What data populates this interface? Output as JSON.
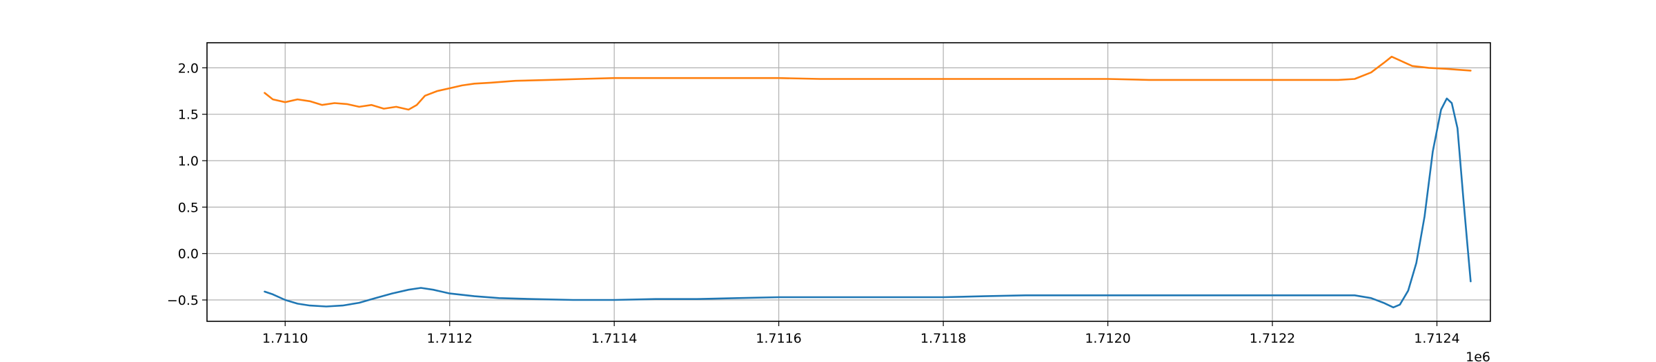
{
  "chart_data": {
    "type": "line",
    "title": "",
    "xlabel": "",
    "ylabel": "",
    "x_offset_label": "1e6",
    "xlim": [
      1710905,
      1712465
    ],
    "ylim": [
      -0.73,
      2.27
    ],
    "grid": true,
    "x_ticks": [
      {
        "value": 1711000,
        "label": "1.7110"
      },
      {
        "value": 1711200,
        "label": "1.7112"
      },
      {
        "value": 1711400,
        "label": "1.7114"
      },
      {
        "value": 1711600,
        "label": "1.7116"
      },
      {
        "value": 1711800,
        "label": "1.7118"
      },
      {
        "value": 1712000,
        "label": "1.7120"
      },
      {
        "value": 1712200,
        "label": "1.7122"
      },
      {
        "value": 1712400,
        "label": "1.7124"
      }
    ],
    "y_ticks": [
      {
        "value": 2.0,
        "label": "2.0"
      },
      {
        "value": 1.5,
        "label": "1.5"
      },
      {
        "value": 1.0,
        "label": "1.0"
      },
      {
        "value": 0.5,
        "label": "0.5"
      },
      {
        "value": 0.0,
        "label": "0.0"
      },
      {
        "value": -0.5,
        "label": "−0.5"
      }
    ],
    "series": [
      {
        "color": "#1f77b4",
        "points": [
          [
            1710975,
            -0.41
          ],
          [
            1710985,
            -0.44
          ],
          [
            1711000,
            -0.5
          ],
          [
            1711015,
            -0.54
          ],
          [
            1711030,
            -0.56
          ],
          [
            1711050,
            -0.57
          ],
          [
            1711070,
            -0.56
          ],
          [
            1711090,
            -0.53
          ],
          [
            1711110,
            -0.48
          ],
          [
            1711130,
            -0.43
          ],
          [
            1711150,
            -0.39
          ],
          [
            1711165,
            -0.37
          ],
          [
            1711180,
            -0.39
          ],
          [
            1711200,
            -0.43
          ],
          [
            1711230,
            -0.46
          ],
          [
            1711260,
            -0.48
          ],
          [
            1711300,
            -0.49
          ],
          [
            1711350,
            -0.5
          ],
          [
            1711400,
            -0.5
          ],
          [
            1711450,
            -0.49
          ],
          [
            1711500,
            -0.49
          ],
          [
            1711550,
            -0.48
          ],
          [
            1711600,
            -0.47
          ],
          [
            1711650,
            -0.47
          ],
          [
            1711700,
            -0.47
          ],
          [
            1711750,
            -0.47
          ],
          [
            1711800,
            -0.47
          ],
          [
            1711850,
            -0.46
          ],
          [
            1711900,
            -0.45
          ],
          [
            1711950,
            -0.45
          ],
          [
            1712000,
            -0.45
          ],
          [
            1712050,
            -0.45
          ],
          [
            1712100,
            -0.45
          ],
          [
            1712150,
            -0.45
          ],
          [
            1712200,
            -0.45
          ],
          [
            1712250,
            -0.45
          ],
          [
            1712300,
            -0.45
          ],
          [
            1712320,
            -0.48
          ],
          [
            1712335,
            -0.53
          ],
          [
            1712347,
            -0.58
          ],
          [
            1712355,
            -0.55
          ],
          [
            1712365,
            -0.4
          ],
          [
            1712375,
            -0.1
          ],
          [
            1712385,
            0.4
          ],
          [
            1712395,
            1.1
          ],
          [
            1712405,
            1.55
          ],
          [
            1712412,
            1.67
          ],
          [
            1712418,
            1.62
          ],
          [
            1712425,
            1.35
          ],
          [
            1712432,
            0.6
          ],
          [
            1712437,
            0.1
          ],
          [
            1712441,
            -0.3
          ]
        ]
      },
      {
        "color": "#ff7f0e",
        "points": [
          [
            1710975,
            1.73
          ],
          [
            1710985,
            1.66
          ],
          [
            1711000,
            1.63
          ],
          [
            1711015,
            1.66
          ],
          [
            1711030,
            1.64
          ],
          [
            1711045,
            1.6
          ],
          [
            1711060,
            1.62
          ],
          [
            1711075,
            1.61
          ],
          [
            1711090,
            1.58
          ],
          [
            1711105,
            1.6
          ],
          [
            1711120,
            1.56
          ],
          [
            1711135,
            1.58
          ],
          [
            1711150,
            1.55
          ],
          [
            1711160,
            1.6
          ],
          [
            1711170,
            1.7
          ],
          [
            1711185,
            1.75
          ],
          [
            1711200,
            1.78
          ],
          [
            1711215,
            1.81
          ],
          [
            1711230,
            1.83
          ],
          [
            1711250,
            1.84
          ],
          [
            1711280,
            1.86
          ],
          [
            1711320,
            1.87
          ],
          [
            1711360,
            1.88
          ],
          [
            1711400,
            1.89
          ],
          [
            1711450,
            1.89
          ],
          [
            1711500,
            1.89
          ],
          [
            1711550,
            1.89
          ],
          [
            1711600,
            1.89
          ],
          [
            1711650,
            1.88
          ],
          [
            1711700,
            1.88
          ],
          [
            1711750,
            1.88
          ],
          [
            1711800,
            1.88
          ],
          [
            1711850,
            1.88
          ],
          [
            1711900,
            1.88
          ],
          [
            1711950,
            1.88
          ],
          [
            1712000,
            1.88
          ],
          [
            1712050,
            1.87
          ],
          [
            1712100,
            1.87
          ],
          [
            1712150,
            1.87
          ],
          [
            1712200,
            1.87
          ],
          [
            1712250,
            1.87
          ],
          [
            1712280,
            1.87
          ],
          [
            1712300,
            1.88
          ],
          [
            1712320,
            1.95
          ],
          [
            1712335,
            2.05
          ],
          [
            1712345,
            2.12
          ],
          [
            1712355,
            2.08
          ],
          [
            1712370,
            2.02
          ],
          [
            1712390,
            2.0
          ],
          [
            1712410,
            1.99
          ],
          [
            1712425,
            1.98
          ],
          [
            1712441,
            1.97
          ]
        ]
      }
    ]
  }
}
